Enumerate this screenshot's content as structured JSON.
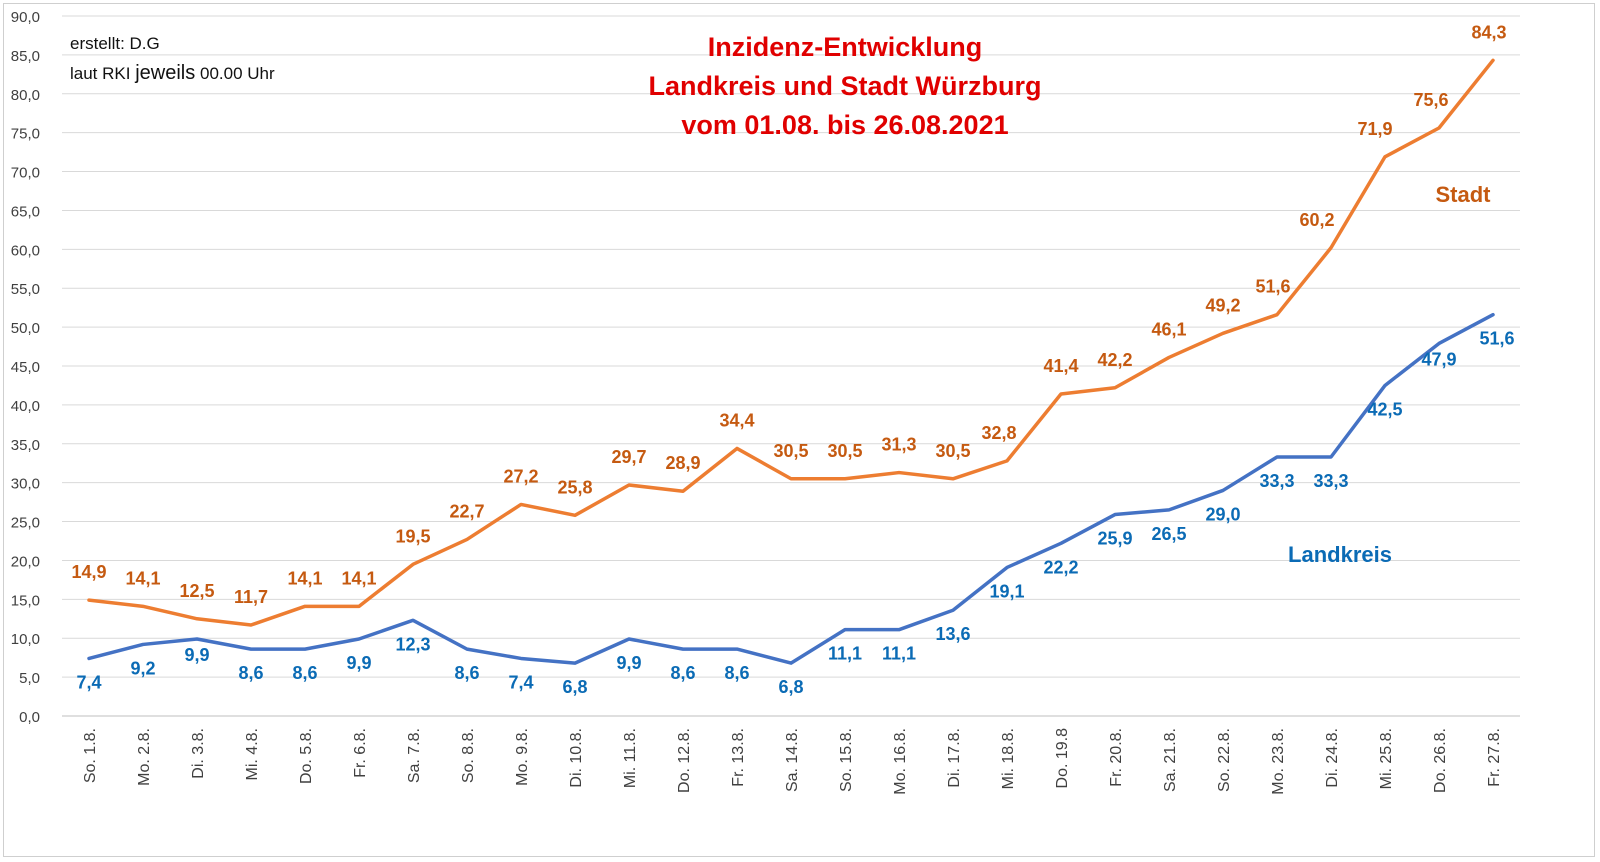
{
  "chart_data": {
    "type": "line",
    "title_lines": [
      "Inzidenz-Entwicklung",
      "Landkreis und Stadt Würzburg",
      "vom 01.08.  bis 26.08.2021"
    ],
    "annotations": {
      "created_by": "erstellt:  D.G",
      "source_a": "laut RKI",
      "source_b": "jeweils",
      "source_c": "00.00 Uhr"
    },
    "categories": [
      "So. 1.8.",
      "Mo. 2.8.",
      "Di. 3.8.",
      "Mi. 4.8.",
      "Do. 5.8.",
      "Fr. 6.8.",
      "Sa. 7.8.",
      "So. 8.8.",
      "Mo. 9.8.",
      "Di. 10.8.",
      "Mi. 11.8.",
      "Do. 12.8.",
      "Fr. 13.8.",
      "Sa. 14.8.",
      "So. 15.8.",
      "Mo. 16.8.",
      "Di. 17.8.",
      "Mi. 18.8.",
      "Do. 19.8",
      "Fr. 20.8.",
      "Sa. 21.8.",
      "So. 22.8.",
      "Mo. 23.8.",
      "Di. 24.8.",
      "Mi. 25.8.",
      "Do. 26.8.",
      "Fr. 27.8."
    ],
    "ylim": [
      0,
      90
    ],
    "y_ticks": [
      "0,0",
      "5,0",
      "10,0",
      "15,0",
      "20,0",
      "25,0",
      "30,0",
      "35,0",
      "40,0",
      "45,0",
      "50,0",
      "55,0",
      "60,0",
      "65,0",
      "70,0",
      "75,0",
      "80,0",
      "85,0",
      "90,0"
    ],
    "grid": "horizontal",
    "series": [
      {
        "name": "Stadt",
        "color": "#ed7d31",
        "label_color": "#c55a11",
        "values": [
          14.9,
          14.1,
          12.5,
          11.7,
          14.1,
          14.1,
          19.5,
          22.7,
          27.2,
          25.8,
          29.7,
          28.9,
          34.4,
          30.5,
          30.5,
          31.3,
          30.5,
          32.8,
          41.4,
          42.2,
          46.1,
          49.2,
          51.6,
          60.2,
          71.9,
          75.6,
          84.3
        ],
        "labels": [
          "14,9",
          "14,1",
          "12,5",
          "11,7",
          "14,1",
          "14,1",
          "19,5",
          "22,7",
          "27,2",
          "25,8",
          "29,7",
          "28,9",
          "34,4",
          "30,5",
          "30,5",
          "31,3",
          "30,5",
          "32,8",
          "41,4",
          "42,2",
          "46,1",
          "49,2",
          "51,6",
          "60,2",
          "71,9",
          "75,6",
          "84,3"
        ]
      },
      {
        "name": "Landkreis",
        "color": "#4472c4",
        "label_color": "#0b6bb5",
        "values": [
          7.4,
          9.2,
          9.9,
          8.6,
          8.6,
          9.9,
          12.3,
          8.6,
          7.4,
          6.8,
          9.9,
          8.6,
          8.6,
          6.8,
          11.1,
          11.1,
          13.6,
          19.1,
          22.2,
          25.9,
          26.5,
          29.0,
          33.3,
          33.3,
          42.5,
          47.9,
          51.6
        ],
        "labels": [
          "7,4",
          "9,2",
          "9,9",
          "8,6",
          "8,6",
          "9,9",
          "12,3",
          "8,6",
          "7,4",
          "6,8",
          "9,9",
          "8,6",
          "8,6",
          "6,8",
          "11,1",
          "11,1",
          "13,6",
          "19,1",
          "22,2",
          "25,9",
          "26,5",
          "29,0",
          "33,3",
          "33,3",
          "42,5",
          "47,9",
          "51,6"
        ]
      }
    ]
  }
}
